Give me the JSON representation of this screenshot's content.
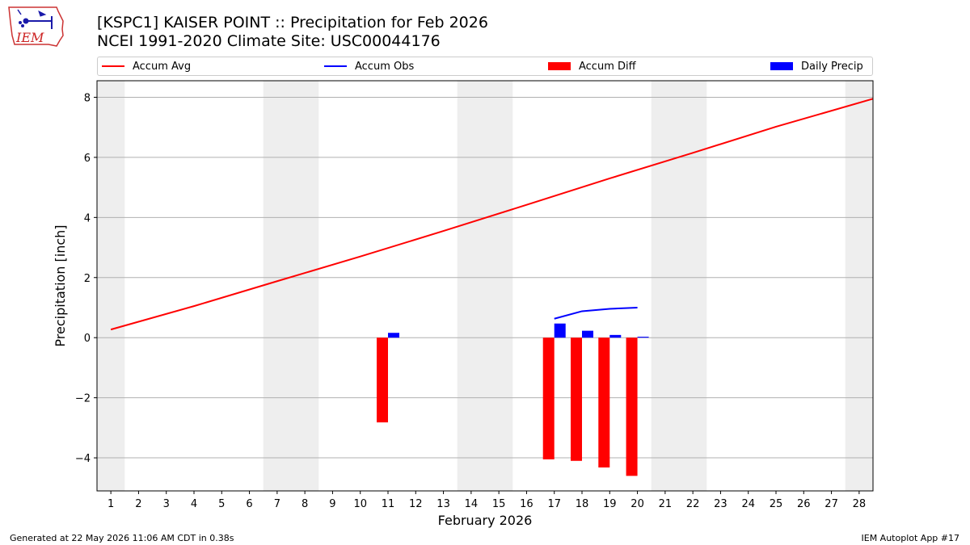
{
  "header": {
    "title_line1": "[KSPC1] KAISER POINT :: Precipitation for Feb 2026",
    "title_line2": "NCEI 1991-2020 Climate Site: USC00044176"
  },
  "logo": {
    "text": "IEM",
    "icon": "iowa-state-outline-weather-station-icon"
  },
  "legend": {
    "placement": "top, above plot",
    "items": [
      {
        "label": "Accum Avg",
        "kind": "line",
        "color": "#ff0000"
      },
      {
        "label": "Accum Obs",
        "kind": "line",
        "color": "#0000ff"
      },
      {
        "label": "Accum Diff",
        "kind": "bar",
        "color": "#ff0000"
      },
      {
        "label": "Daily Precip",
        "kind": "bar",
        "color": "#0000ff"
      }
    ]
  },
  "footer": {
    "generated": "Generated at 22 May 2026 11:06 AM CDT in 0.38s",
    "app": "IEM Autoplot App #17"
  },
  "chart_data": {
    "type": "bar",
    "xlabel": "February 2026",
    "ylabel": "Precipitation [inch]",
    "xlim": [
      0.5,
      28.5
    ],
    "ylim": [
      -5.1,
      8.55
    ],
    "x_ticks": [
      1,
      2,
      3,
      4,
      5,
      6,
      7,
      8,
      9,
      10,
      11,
      12,
      13,
      14,
      15,
      16,
      17,
      18,
      19,
      20,
      21,
      22,
      23,
      24,
      25,
      26,
      27,
      28
    ],
    "y_ticks": [
      -4,
      -2,
      0,
      2,
      4,
      6,
      8
    ],
    "y_tick_labels": [
      "−4",
      "−2",
      "0",
      "2",
      "4",
      "6",
      "8"
    ],
    "grid": "horizontal",
    "weekend_shading": [
      [
        0.5,
        1.5
      ],
      [
        6.5,
        8.5
      ],
      [
        13.5,
        15.5
      ],
      [
        20.5,
        22.5
      ],
      [
        27.5,
        28.5
      ]
    ],
    "shading_color": "#eeeeee",
    "series": [
      {
        "name": "Accum Avg",
        "kind": "line",
        "color": "#ff0000",
        "x": [
          1,
          4,
          7,
          10,
          13,
          16,
          19,
          22,
          25,
          28.5
        ],
        "y": [
          0.27,
          1.05,
          1.88,
          2.7,
          3.55,
          4.42,
          5.3,
          6.15,
          7.02,
          7.95
        ]
      },
      {
        "name": "Accum Obs",
        "kind": "line",
        "color": "#0000ff",
        "x": [
          17,
          18,
          19,
          20
        ],
        "y": [
          0.63,
          0.88,
          0.96,
          1.0
        ]
      },
      {
        "name": "Accum Diff",
        "kind": "bar",
        "color": "#ff0000",
        "x": [
          11,
          17,
          18,
          19,
          20
        ],
        "y": [
          -2.82,
          -4.05,
          -4.1,
          -4.32,
          -4.6
        ]
      },
      {
        "name": "Daily Precip",
        "kind": "bar",
        "color": "#0000ff",
        "x": [
          11,
          17,
          18,
          19,
          20
        ],
        "y": [
          0.16,
          0.47,
          0.23,
          0.09,
          0.03
        ]
      }
    ]
  }
}
